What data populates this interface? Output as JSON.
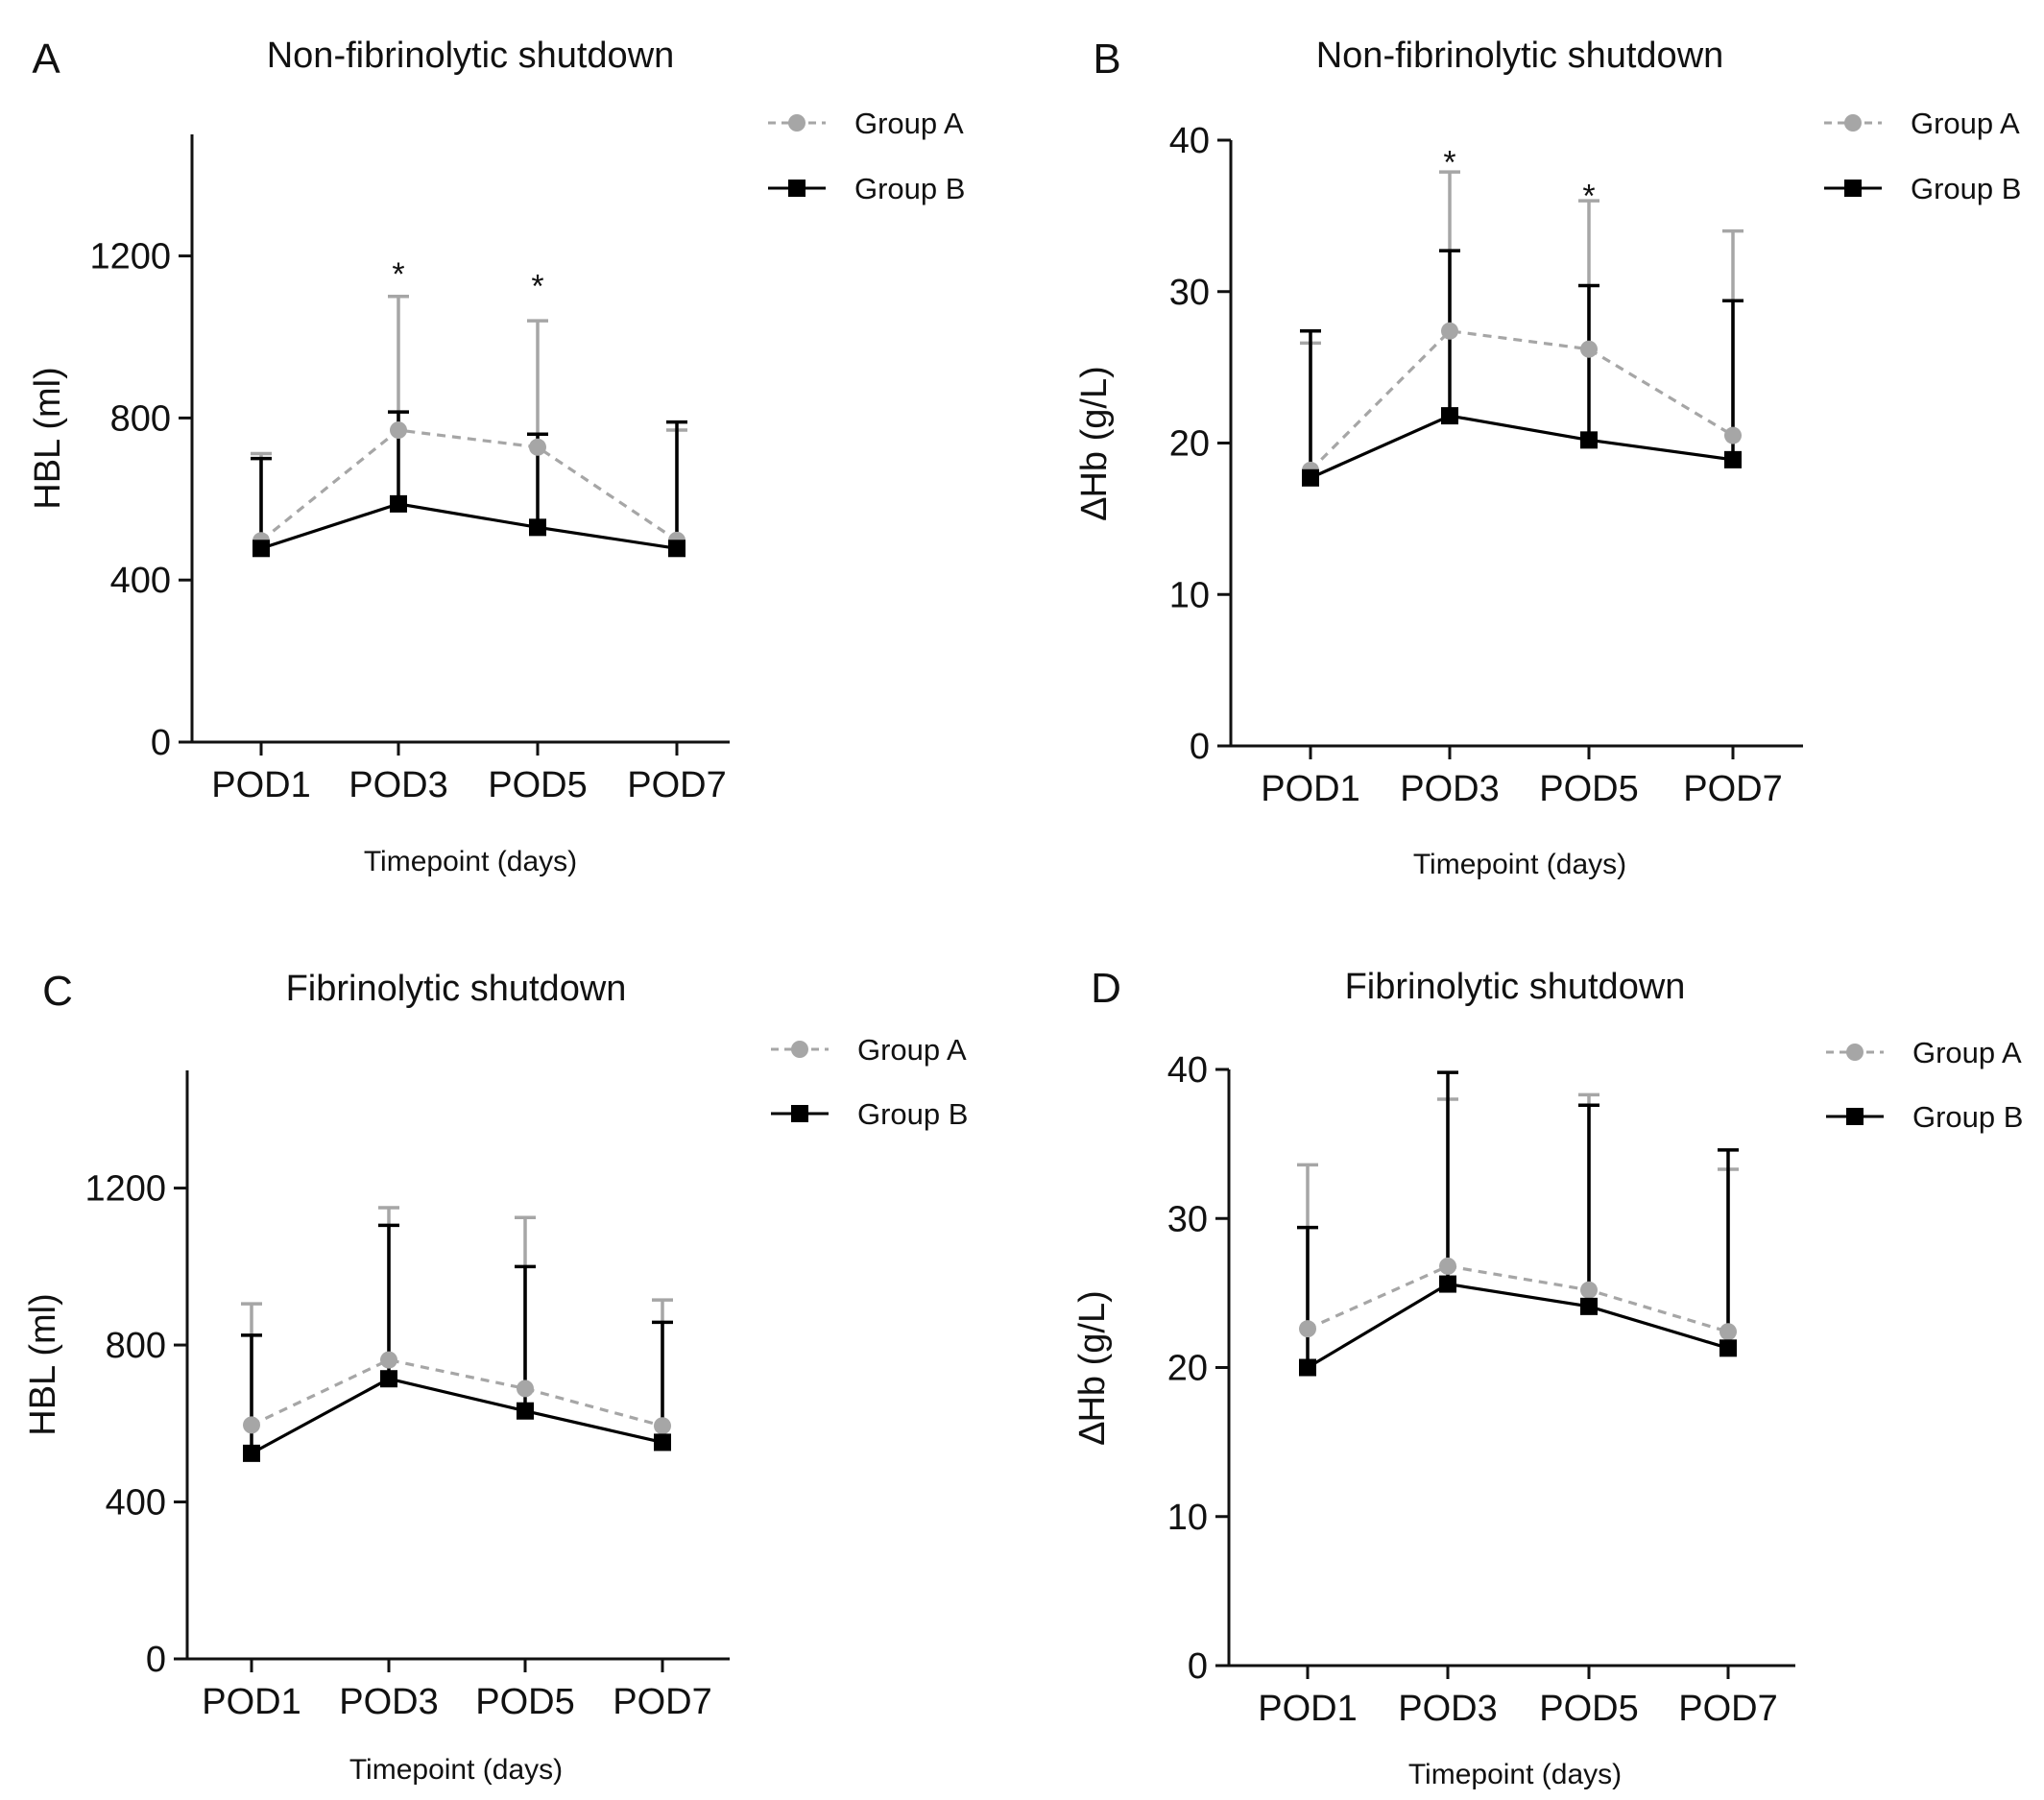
{
  "colors": {
    "group_a": "#a6a6a6",
    "group_b": "#000000",
    "axis": "#111111"
  },
  "chart_data": [
    {
      "panel_label": "A",
      "type": "line",
      "title": "Non-fibrinolytic shutdown",
      "xlabel": "Timepoint (days)",
      "ylabel": "HBL (ml)",
      "categories": [
        "POD1",
        "POD3",
        "POD5",
        "POD7"
      ],
      "ylim": [
        0,
        1500
      ],
      "yticks": [
        0,
        400,
        800,
        1200
      ],
      "legend": "top-right",
      "grid": false,
      "series": [
        {
          "name": "Group A",
          "marker": "circle",
          "line": "dashed",
          "values": [
            497,
            770,
            728,
            498
          ],
          "error_upper": [
            712,
            1100,
            1040,
            770
          ]
        },
        {
          "name": "Group B",
          "marker": "square",
          "line": "solid",
          "values": [
            478,
            588,
            530,
            478
          ],
          "error_upper": [
            700,
            815,
            760,
            790
          ]
        }
      ],
      "annotations": [
        {
          "text": "*",
          "category": "POD3",
          "y": 1180
        },
        {
          "text": "*",
          "category": "POD5",
          "y": 1150
        }
      ]
    },
    {
      "panel_label": "B",
      "type": "line",
      "title": "Non-fibrinolytic shutdown",
      "xlabel": "Timepoint (days)",
      "ylabel": "∆Hb (g/L)",
      "categories": [
        "POD1",
        "POD3",
        "POD5",
        "POD7"
      ],
      "ylim": [
        0,
        40
      ],
      "yticks": [
        0,
        10,
        20,
        30,
        40
      ],
      "legend": "top-right",
      "grid": false,
      "series": [
        {
          "name": "Group A",
          "marker": "circle",
          "line": "dashed",
          "values": [
            18.2,
            27.4,
            26.2,
            20.5
          ],
          "error_upper": [
            26.6,
            37.9,
            36.0,
            34.0
          ]
        },
        {
          "name": "Group B",
          "marker": "square",
          "line": "solid",
          "values": [
            17.7,
            21.8,
            20.2,
            18.9
          ],
          "error_upper": [
            27.4,
            32.7,
            30.4,
            29.4
          ]
        }
      ],
      "annotations": [
        {
          "text": "*",
          "category": "POD3",
          "y": 39.2
        },
        {
          "text": "*",
          "category": "POD5",
          "y": 37.0
        }
      ]
    },
    {
      "panel_label": "C",
      "type": "line",
      "title": "Fibrinolytic shutdown",
      "xlabel": "Timepoint (days)",
      "ylabel": "HBL (ml)",
      "categories": [
        "POD1",
        "POD3",
        "POD5",
        "POD7"
      ],
      "ylim": [
        0,
        1500
      ],
      "yticks": [
        0,
        400,
        800,
        1200
      ],
      "legend": "top-right",
      "grid": false,
      "series": [
        {
          "name": "Group A",
          "marker": "circle",
          "line": "dashed",
          "values": [
            596,
            762,
            689,
            594
          ],
          "error_upper": [
            905,
            1150,
            1125,
            915
          ]
        },
        {
          "name": "Group B",
          "marker": "square",
          "line": "solid",
          "values": [
            524,
            714,
            632,
            552
          ],
          "error_upper": [
            825,
            1105,
            1000,
            858
          ]
        }
      ],
      "annotations": []
    },
    {
      "panel_label": "D",
      "type": "line",
      "title": "Fibrinolytic shutdown",
      "xlabel": "Timepoint (days)",
      "ylabel": "∆Hb (g/L)",
      "categories": [
        "POD1",
        "POD3",
        "POD5",
        "POD7"
      ],
      "ylim": [
        0,
        40
      ],
      "yticks": [
        0,
        10,
        20,
        30,
        40
      ],
      "legend": "top-right",
      "grid": false,
      "series": [
        {
          "name": "Group A",
          "marker": "circle",
          "line": "dashed",
          "values": [
            22.6,
            26.8,
            25.2,
            22.4
          ],
          "error_upper": [
            33.6,
            38.0,
            38.3,
            33.3
          ]
        },
        {
          "name": "Group B",
          "marker": "square",
          "line": "solid",
          "values": [
            20.0,
            25.6,
            24.1,
            21.3
          ],
          "error_upper": [
            29.4,
            39.8,
            37.6,
            34.6
          ]
        }
      ],
      "annotations": []
    }
  ]
}
